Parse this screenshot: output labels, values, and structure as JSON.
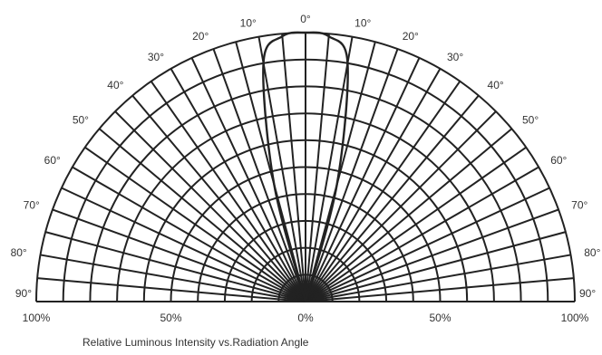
{
  "caption": "Relative Luminous Intensity vs.Radiation Angle",
  "chart_data": {
    "type": "polar",
    "title": "Relative Luminous Intensity vs.Radiation Angle",
    "angular_axis": {
      "unit": "°",
      "range": [
        -90,
        90
      ],
      "step": 5,
      "labels": [
        "90°",
        "80°",
        "70°",
        "60°",
        "50°",
        "40°",
        "30°",
        "20°",
        "10°",
        "0°",
        "10°",
        "20°",
        "30°",
        "40°",
        "50°",
        "60°",
        "70°",
        "80°",
        "90°"
      ],
      "label_values": [
        -90,
        -80,
        -70,
        -60,
        -50,
        -40,
        -30,
        -20,
        -10,
        0,
        10,
        20,
        30,
        40,
        50,
        60,
        70,
        80,
        90
      ]
    },
    "radial_axis": {
      "range": [
        0,
        100
      ],
      "unit": "%",
      "ring_values": [
        10,
        20,
        30,
        40,
        50,
        60,
        70,
        80,
        90,
        100
      ],
      "labels": [
        "100%",
        "50%",
        "0%",
        "50%",
        "100%"
      ],
      "label_values": [
        -100,
        -50,
        0,
        50,
        100
      ]
    },
    "series": [
      {
        "angle": [
          -20,
          -15,
          -10,
          -5,
          0,
          5,
          10,
          15,
          20
        ],
        "intensity": [
          0,
          45,
          90,
          99,
          100,
          99,
          90,
          45,
          0
        ]
      }
    ],
    "grid": true,
    "colors": {
      "grid": "#222222",
      "curve": "#222222",
      "text": "#333333"
    }
  }
}
